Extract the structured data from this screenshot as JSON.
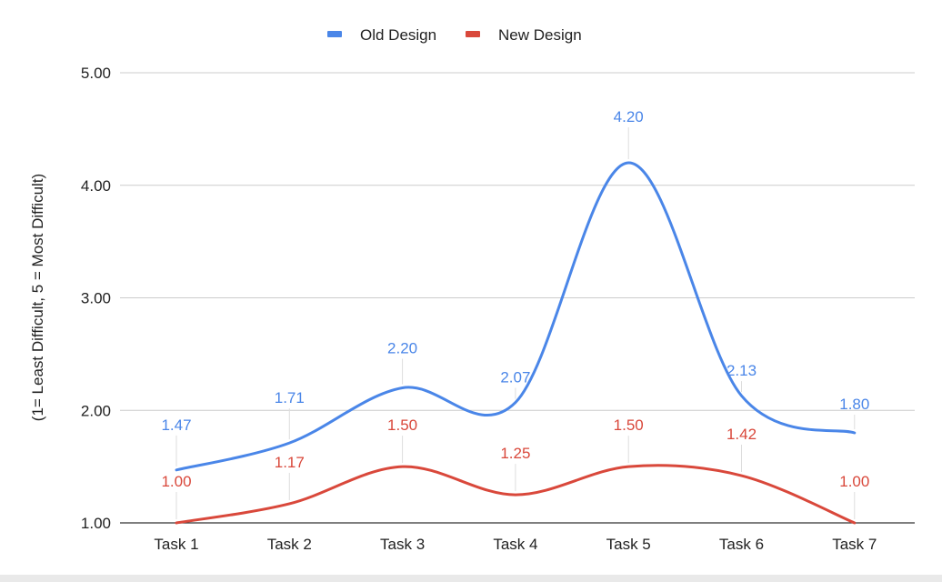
{
  "chart_data": {
    "type": "line",
    "smooth": true,
    "title": "",
    "xlabel": "",
    "ylabel": "(1= Least Difficult, 5 = Most Difficult)",
    "categories": [
      "Task 1",
      "Task 2",
      "Task 3",
      "Task 4",
      "Task 5",
      "Task 6",
      "Task 7"
    ],
    "ylim": [
      1,
      5
    ],
    "yticks": [
      "1.00",
      "2.00",
      "3.00",
      "4.00",
      "5.00"
    ],
    "grid": true,
    "legend_position": "top",
    "series": [
      {
        "name": "Old Design",
        "color": "#4a86e8",
        "values": [
          1.47,
          1.71,
          2.2,
          2.07,
          4.2,
          2.13,
          1.8
        ],
        "labels": [
          "1.47",
          "1.71",
          "2.20",
          "2.07",
          "4.20",
          "2.13",
          "1.80"
        ]
      },
      {
        "name": "New Design",
        "color": "#d9483b",
        "values": [
          1.0,
          1.17,
          1.5,
          1.25,
          1.5,
          1.42,
          1.0
        ],
        "labels": [
          "1.00",
          "1.17",
          "1.50",
          "1.25",
          "1.50",
          "1.42",
          "1.00"
        ]
      }
    ]
  }
}
